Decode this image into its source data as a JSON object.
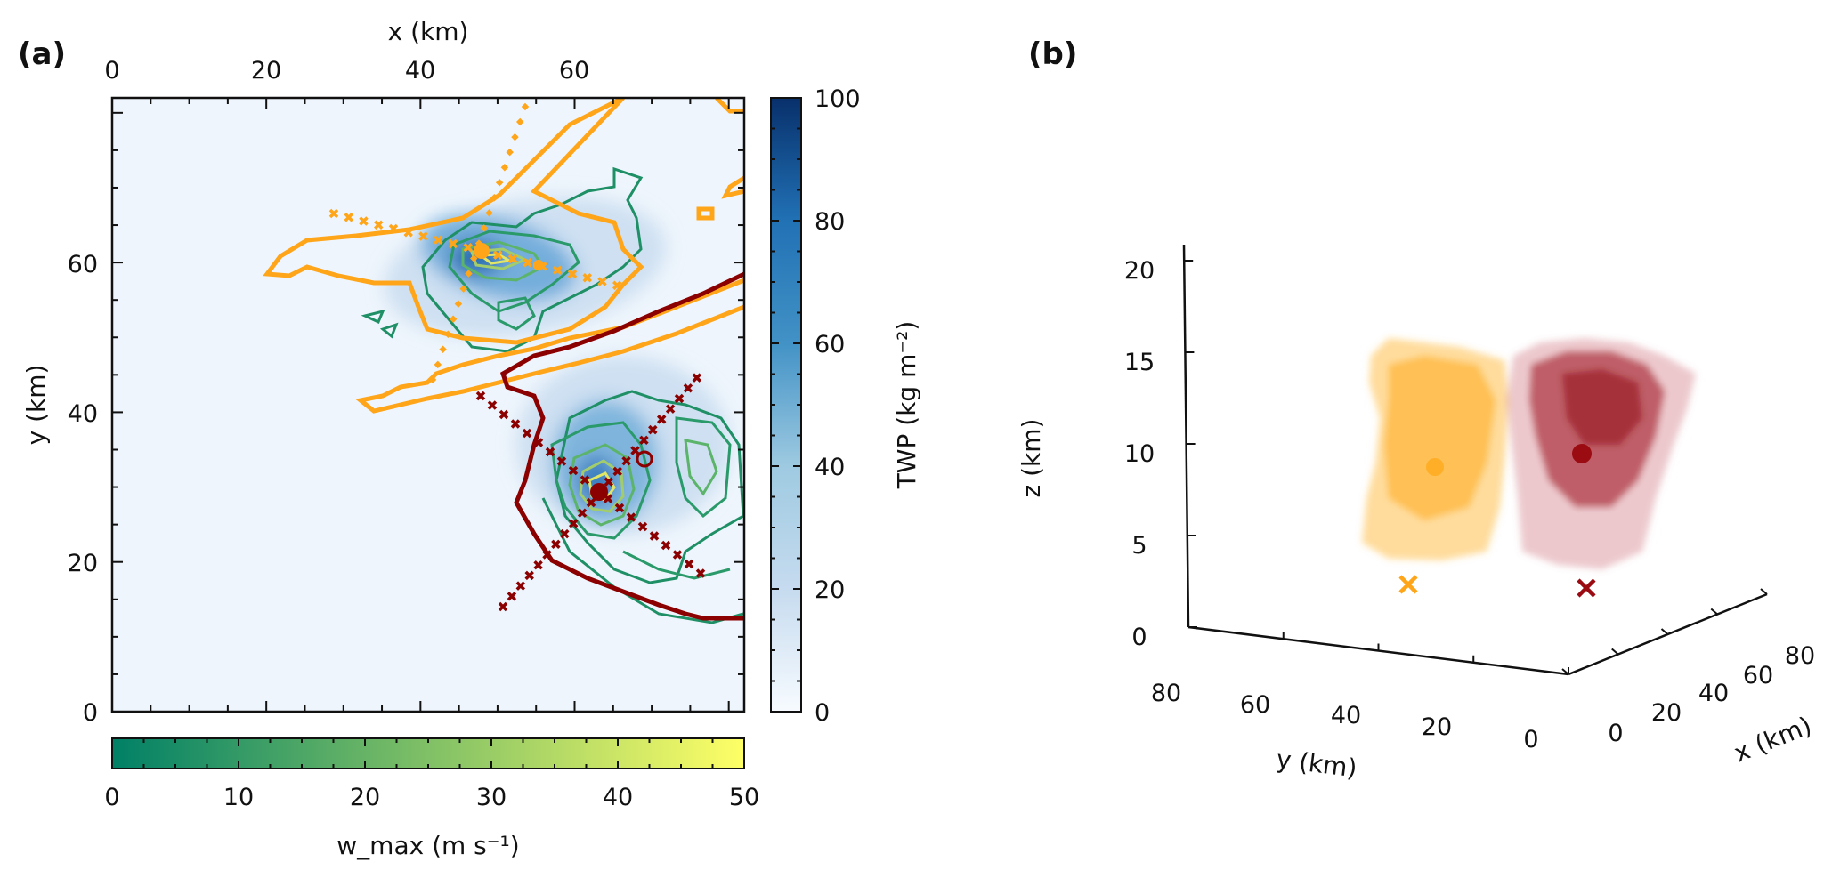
{
  "panel_a": {
    "label": "(a)",
    "chart_data": {
      "type": "heatmap",
      "xlabel": "x (km)",
      "ylabel": "y (km)",
      "xlim": [
        0,
        82
      ],
      "ylim": [
        0,
        82
      ],
      "xticks": [
        "0",
        "20",
        "40",
        "60"
      ],
      "yticks": [
        "0",
        "20",
        "40",
        "60"
      ],
      "x_axis_position": "top",
      "twp_colorbar": {
        "label": "TWP (kg m⁻²)",
        "ticks": [
          "0",
          "20",
          "40",
          "60",
          "80",
          "100"
        ],
        "range": [
          0,
          100
        ],
        "colormap": "Blues"
      },
      "w_max_colorbar": {
        "label": "w_max (m s⁻¹)",
        "ticks": [
          "0",
          "10",
          "20",
          "30",
          "40",
          "50"
        ],
        "range": [
          0,
          50
        ],
        "colormap": "summer"
      },
      "markers": [
        {
          "cell": "orange",
          "type": "center",
          "x": 48,
          "y": 62
        },
        {
          "cell": "orange",
          "type": "center-small",
          "x": 56,
          "y": 60
        },
        {
          "cell": "red",
          "type": "center",
          "x": 63,
          "y": 29.5
        },
        {
          "cell": "red",
          "type": "open-circle",
          "x": 69,
          "y": 33.5
        }
      ],
      "colors": {
        "orange": "#ffa51a",
        "red": "#8b0000",
        "green": "#2a9a6a"
      }
    }
  },
  "panel_b": {
    "label": "(b)",
    "chart_data": {
      "type": "scatter",
      "projection": "3d",
      "xlabel": "x (km)",
      "ylabel": "y (km)",
      "zlabel": "z (km)",
      "xticks": [
        "0",
        "20",
        "40",
        "60",
        "80"
      ],
      "yticks": [
        "80",
        "60",
        "40",
        "20",
        "0"
      ],
      "zticks": [
        "0",
        "5",
        "10",
        "15",
        "20"
      ],
      "series": [
        {
          "color": "#ffae27",
          "centroid_z": 9
        },
        {
          "color": "#9b0c12",
          "centroid_z": 10
        }
      ]
    }
  }
}
